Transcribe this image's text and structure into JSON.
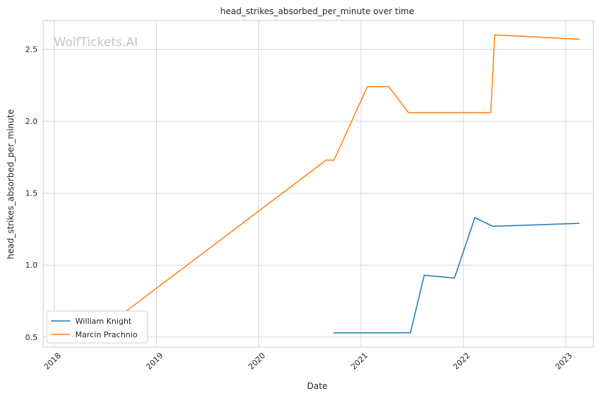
{
  "watermark": "WolfTickets.AI",
  "chart_data": {
    "type": "line",
    "title": "head_strikes_absorbed_per_minute over time",
    "xlabel": "Date",
    "ylabel": "head_strikes_absorbed_per_minute",
    "x_ticks": [
      "2018",
      "2019",
      "2020",
      "2021",
      "2022",
      "2023"
    ],
    "y_ticks": [
      "0.5",
      "1.0",
      "1.5",
      "2.0",
      "2.5"
    ],
    "xlim": [
      "2017-11-23",
      "2023-04-10"
    ],
    "ylim": [
      0.43,
      2.7
    ],
    "grid": true,
    "legend_position": "bottom-left",
    "series": [
      {
        "name": "William Knight",
        "color": "#1f77b4",
        "x": [
          "2020-09-26",
          "2021-06-26",
          "2021-08-14",
          "2021-11-30",
          "2022-02-11",
          "2022-04-16",
          "2023-02-18"
        ],
        "y": [
          0.53,
          0.53,
          0.93,
          0.91,
          1.33,
          1.27,
          1.29
        ]
      },
      {
        "name": "Marcin Prachnio",
        "color": "#ff7f0e",
        "x": [
          "2018-02-24",
          "2018-09-15",
          "2020-08-29",
          "2020-09-26",
          "2021-01-23",
          "2021-04-10",
          "2021-06-19",
          "2022-04-09",
          "2022-04-23",
          "2023-02-18"
        ],
        "y": [
          0.68,
          0.68,
          1.73,
          1.73,
          2.24,
          2.24,
          2.06,
          2.06,
          2.6,
          2.57
        ]
      }
    ]
  }
}
